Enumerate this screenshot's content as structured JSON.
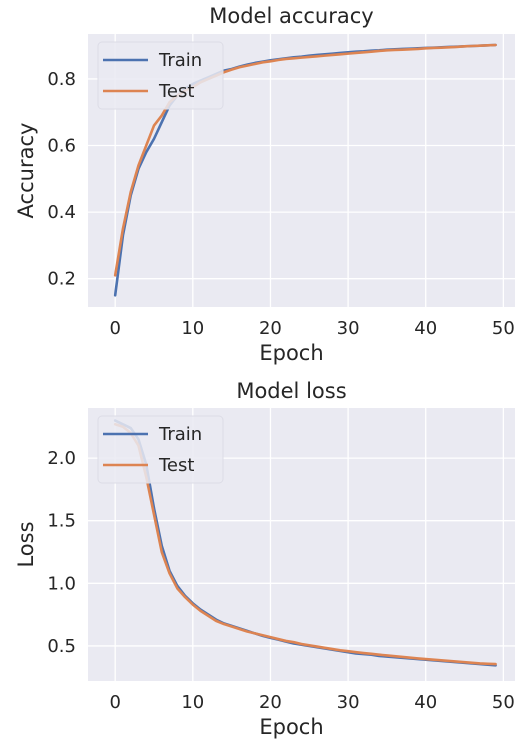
{
  "chart_data": [
    {
      "type": "line",
      "title": "Model accuracy",
      "xlabel": "Epoch",
      "ylabel": "Accuracy",
      "xlim": [
        -3.5,
        51.5
      ],
      "ylim": [
        0.115,
        0.935
      ],
      "xticks": [
        0,
        10,
        20,
        30,
        40,
        50
      ],
      "yticks": [
        0.2,
        0.4,
        0.6,
        0.8
      ],
      "grid": true,
      "legend": "upper left",
      "x": [
        0,
        1,
        2,
        3,
        4,
        5,
        6,
        7,
        8,
        9,
        10,
        11,
        12,
        13,
        14,
        15,
        16,
        17,
        18,
        19,
        20,
        21,
        22,
        23,
        24,
        25,
        26,
        27,
        28,
        29,
        30,
        31,
        32,
        33,
        34,
        35,
        36,
        37,
        38,
        39,
        40,
        41,
        42,
        43,
        44,
        45,
        46,
        47,
        48,
        49
      ],
      "series": [
        {
          "name": "Train",
          "color": "#4C72B0",
          "values": [
            0.15,
            0.33,
            0.45,
            0.53,
            0.58,
            0.62,
            0.67,
            0.72,
            0.75,
            0.77,
            0.785,
            0.795,
            0.805,
            0.815,
            0.825,
            0.83,
            0.837,
            0.843,
            0.848,
            0.852,
            0.856,
            0.859,
            0.862,
            0.865,
            0.867,
            0.87,
            0.872,
            0.874,
            0.876,
            0.878,
            0.88,
            0.882,
            0.883,
            0.885,
            0.886,
            0.888,
            0.889,
            0.89,
            0.891,
            0.892,
            0.893,
            0.894,
            0.895,
            0.896,
            0.897,
            0.898,
            0.899,
            0.9,
            0.901,
            0.902
          ]
        },
        {
          "name": "Test",
          "color": "#DD8452",
          "values": [
            0.21,
            0.35,
            0.46,
            0.54,
            0.6,
            0.66,
            0.69,
            0.73,
            0.75,
            0.765,
            0.775,
            0.79,
            0.8,
            0.81,
            0.82,
            0.828,
            0.835,
            0.84,
            0.845,
            0.85,
            0.853,
            0.857,
            0.86,
            0.862,
            0.864,
            0.866,
            0.868,
            0.87,
            0.872,
            0.874,
            0.876,
            0.878,
            0.88,
            0.882,
            0.884,
            0.886,
            0.887,
            0.888,
            0.889,
            0.89,
            0.892,
            0.893,
            0.894,
            0.895,
            0.896,
            0.898,
            0.899,
            0.9,
            0.901,
            0.902
          ]
        }
      ]
    },
    {
      "type": "line",
      "title": "Model loss",
      "xlabel": "Epoch",
      "ylabel": "Loss",
      "xlim": [
        -3.5,
        51.5
      ],
      "ylim": [
        0.22,
        2.4
      ],
      "xticks": [
        0,
        10,
        20,
        30,
        40,
        50
      ],
      "yticks": [
        0.5,
        1.0,
        1.5,
        2.0
      ],
      "ytick_labels": [
        "0.5",
        "1.0",
        "1.5",
        "2.0"
      ],
      "grid": true,
      "legend": "upper left",
      "x": [
        0,
        1,
        2,
        3,
        4,
        5,
        6,
        7,
        8,
        9,
        10,
        11,
        12,
        13,
        14,
        15,
        16,
        17,
        18,
        19,
        20,
        21,
        22,
        23,
        24,
        25,
        26,
        27,
        28,
        29,
        30,
        31,
        32,
        33,
        34,
        35,
        36,
        37,
        38,
        39,
        40,
        41,
        42,
        43,
        44,
        45,
        46,
        47,
        48,
        49
      ],
      "series": [
        {
          "name": "Train",
          "color": "#4C72B0",
          "values": [
            2.3,
            2.27,
            2.24,
            2.15,
            1.95,
            1.6,
            1.3,
            1.1,
            0.98,
            0.9,
            0.84,
            0.79,
            0.75,
            0.71,
            0.68,
            0.66,
            0.64,
            0.62,
            0.6,
            0.58,
            0.565,
            0.55,
            0.535,
            0.52,
            0.51,
            0.5,
            0.49,
            0.48,
            0.47,
            0.46,
            0.45,
            0.44,
            0.435,
            0.43,
            0.42,
            0.415,
            0.41,
            0.405,
            0.4,
            0.395,
            0.39,
            0.385,
            0.38,
            0.375,
            0.37,
            0.365,
            0.36,
            0.355,
            0.35,
            0.345
          ]
        },
        {
          "name": "Test",
          "color": "#DD8452",
          "values": [
            2.27,
            2.25,
            2.2,
            2.1,
            1.85,
            1.55,
            1.25,
            1.08,
            0.96,
            0.89,
            0.83,
            0.78,
            0.74,
            0.7,
            0.675,
            0.655,
            0.635,
            0.615,
            0.6,
            0.585,
            0.57,
            0.555,
            0.54,
            0.53,
            0.515,
            0.505,
            0.495,
            0.485,
            0.475,
            0.465,
            0.458,
            0.45,
            0.443,
            0.437,
            0.43,
            0.424,
            0.418,
            0.412,
            0.406,
            0.4,
            0.395,
            0.39,
            0.385,
            0.38,
            0.375,
            0.37,
            0.365,
            0.36,
            0.357,
            0.355
          ]
        }
      ]
    }
  ]
}
